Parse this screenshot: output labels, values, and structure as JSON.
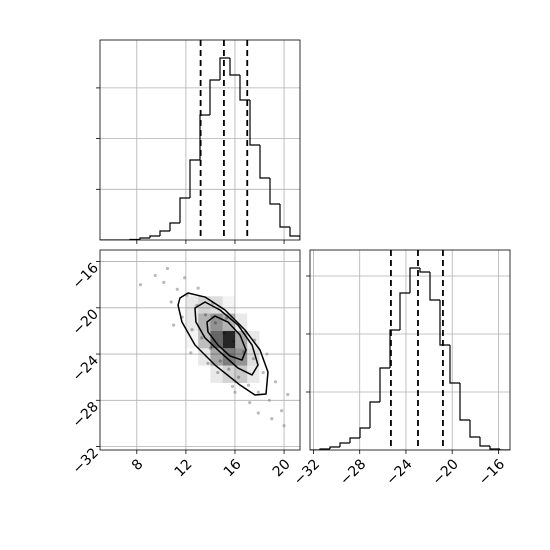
{
  "chart_data": [
    {
      "type": "histogram",
      "color": "#000000",
      "grid": true,
      "bins": [
        5,
        5.815,
        6.63,
        7.445,
        8.26,
        9.075,
        9.89,
        10.705,
        11.52,
        12.335,
        13.15,
        13.965,
        14.78,
        15.595,
        16.41,
        17.225,
        18.04,
        18.855,
        19.67,
        20.485,
        21.3
      ],
      "values": [
        0,
        0,
        0,
        10,
        40,
        79,
        178,
        335,
        828,
        1578,
        2465,
        3156,
        3590,
        3254,
        2761,
        1874,
        1223,
        710,
        256,
        79
      ],
      "quantiles": [
        13.2,
        15.1,
        17.0
      ],
      "xlim": [
        5,
        21.3
      ],
      "xticks": [
        8,
        12,
        16,
        20
      ],
      "show_xtick_labels": false,
      "ylim": [
        0,
        3945
      ],
      "yticks": [
        1000,
        2000,
        3000
      ],
      "show_ytick_labels": false
    },
    {
      "type": "scatter",
      "grid": true,
      "point_color": "#8c8c8c",
      "x": [
        9.5,
        10.2,
        10.8,
        11.3,
        11.7,
        12.1,
        12.5,
        12.9,
        13.3,
        13.6,
        14.0,
        14.4,
        14.8,
        15.1,
        15.5,
        15.9,
        16.3,
        16.7,
        17.1,
        17.5,
        17.9,
        18.3,
        18.8,
        19.3,
        19.8,
        20.3,
        10.5,
        11.9,
        13.0,
        14.2,
        15.3,
        16.5,
        17.6,
        18.6,
        12.4,
        14.6,
        16.0,
        17.2,
        19.0,
        11.0,
        13.8,
        15.8,
        17.9,
        20.0,
        8.3
      ],
      "y": [
        -17.2,
        -17.8,
        -19.5,
        -18.4,
        -20.8,
        -18.9,
        -21.9,
        -19.8,
        -22.6,
        -20.6,
        -23.5,
        -21.3,
        -24.6,
        -22.2,
        -25.3,
        -22.9,
        -26.0,
        -23.8,
        -26.7,
        -24.4,
        -27.3,
        -25.6,
        -28.0,
        -26.4,
        -28.9,
        -27.5,
        -16.6,
        -17.4,
        -18.3,
        -19.6,
        -20.9,
        -21.7,
        -22.8,
        -24.0,
        -23.9,
        -25.6,
        -27.3,
        -28.2,
        -29.6,
        -21.5,
        -24.8,
        -26.8,
        -29.1,
        -30.2,
        -18.0
      ],
      "density": {
        "x_edges": [
          12,
          13,
          14,
          15,
          16,
          17,
          18
        ],
        "y_edges": [
          -19,
          -20.5,
          -22,
          -23.5,
          -25,
          -26.5
        ],
        "values": [
          [
            0.1,
            0.2,
            0.15,
            0.05,
            0,
            0
          ],
          [
            0.1,
            0.35,
            0.5,
            0.35,
            0.1,
            0
          ],
          [
            0.05,
            0.3,
            0.7,
            1.0,
            0.4,
            0.1
          ],
          [
            0,
            0.1,
            0.4,
            0.6,
            0.5,
            0.15
          ],
          [
            0,
            0,
            0.1,
            0.2,
            0.25,
            0.1
          ]
        ]
      },
      "contours": [
        {
          "x": [
            11.52,
            12.17,
            13.56,
            15.19,
            16.82,
            18.04,
            18.69,
            18.53,
            17.63,
            16.41,
            14.37,
            12.74,
            11.68,
            11.36
          ],
          "y": [
            -19.15,
            -18.72,
            -19.07,
            -20.19,
            -21.92,
            -23.65,
            -25.55,
            -27.46,
            -27.54,
            -26.68,
            -24.95,
            -23.22,
            -21.23,
            -19.76
          ]
        },
        {
          "x": [
            12.74,
            13.56,
            14.78,
            16.25,
            17.39,
            17.88,
            17.39,
            16.25,
            14.78,
            13.56,
            12.82
          ],
          "y": [
            -20.02,
            -19.5,
            -20.19,
            -21.49,
            -23.22,
            -24.95,
            -25.81,
            -25.21,
            -23.82,
            -22.61,
            -21.23
          ]
        },
        {
          "x": [
            13.72,
            14.37,
            15.43,
            16.41,
            16.9,
            16.57,
            15.6,
            14.62,
            13.8
          ],
          "y": [
            -21.23,
            -20.71,
            -21.23,
            -22.35,
            -23.65,
            -24.52,
            -24.17,
            -23.22,
            -22.09
          ]
        }
      ],
      "xlim": [
        5,
        21.3
      ],
      "xticks": [
        8,
        12,
        16,
        20
      ],
      "ylim": [
        -32.3,
        -15
      ],
      "yticks": [
        {
          "value": -16,
          "label": "−16"
        },
        {
          "value": -20,
          "label": "−20"
        },
        {
          "value": -24,
          "label": "−24"
        },
        {
          "value": -28,
          "label": "−28"
        },
        {
          "value": -32,
          "label": "−32"
        }
      ]
    },
    {
      "type": "histogram",
      "color": "#000000",
      "grid": true,
      "bins": [
        -32.3,
        -31.435,
        -30.57,
        -29.705,
        -28.84,
        -27.975,
        -27.11,
        -26.245,
        -25.38,
        -24.515,
        -23.65,
        -22.785,
        -21.92,
        -21.055,
        -20.19,
        -19.325,
        -18.46,
        -17.595,
        -16.73,
        -15.865,
        -15.0
      ],
      "values": [
        0,
        17,
        52,
        121,
        207,
        379,
        828,
        1414,
        2069,
        2707,
        3138,
        3069,
        2586,
        1810,
        1155,
        517,
        224,
        69,
        17,
        0
      ],
      "quantiles": [
        -25.3,
        -22.96,
        -20.8
      ],
      "xlim": [
        -32.3,
        -15
      ],
      "xticks": [
        {
          "value": -32,
          "label": "−32"
        },
        {
          "value": -28,
          "label": "−28"
        },
        {
          "value": -24,
          "label": "−24"
        },
        {
          "value": -20,
          "label": "−20"
        },
        {
          "value": -16,
          "label": "−16"
        }
      ],
      "ylim": [
        0,
        3448
      ],
      "yticks": [
        1000,
        2000,
        3000
      ],
      "show_ytick_labels": false
    }
  ]
}
